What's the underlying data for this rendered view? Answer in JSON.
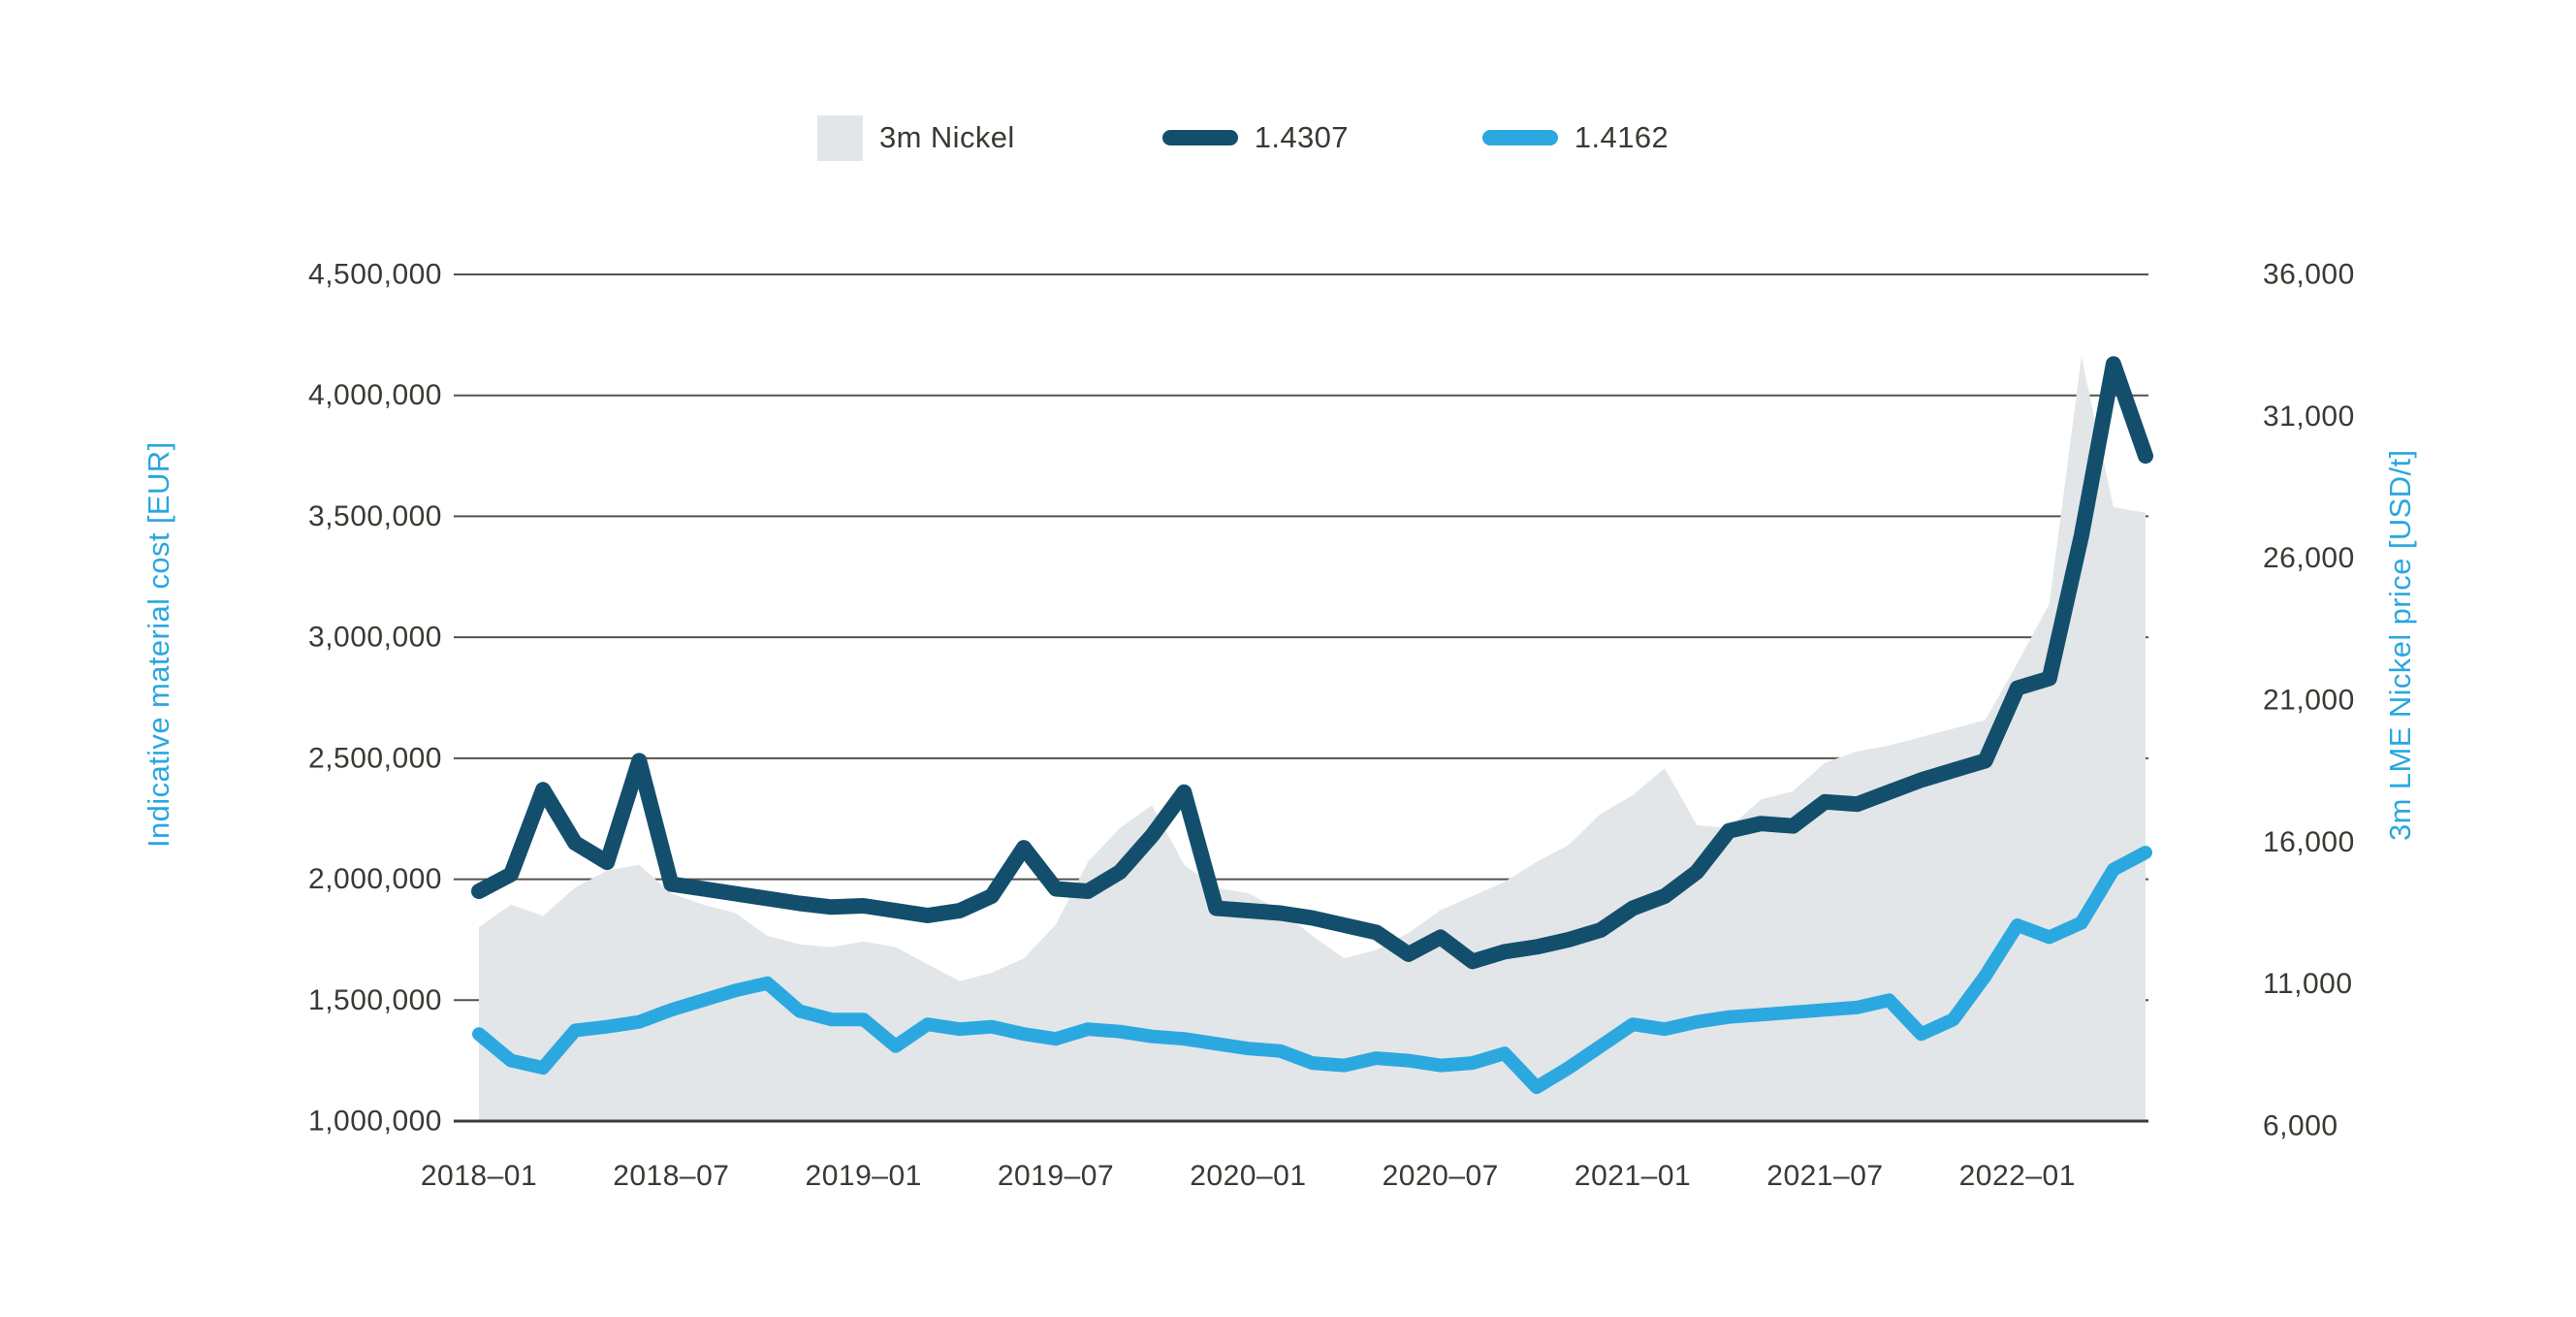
{
  "accent_blue": "#29a7e0",
  "text_color": "#3a3933",
  "chart_data": {
    "type": "combo-area-line",
    "title": "",
    "x_start": "2018-01",
    "x_step_months": 1,
    "points": 53,
    "x_tick_labels": [
      "2018–01",
      "2018–07",
      "2019–01",
      "2019–07",
      "2020–01",
      "2020–07",
      "2021–01",
      "2021–07",
      "2022–01"
    ],
    "left_axis": {
      "label": "Indicative material cost [EUR]",
      "min": 1000000,
      "max": 4500000,
      "tick_labels": [
        "4,500,000",
        "4,000,000",
        "3,500,000",
        "3,000,000",
        "2,500,000",
        "2,000,000",
        "1,500,000",
        "1,000,000"
      ]
    },
    "right_axis": {
      "label": "3m LME Nickel price [USD/t]",
      "min": 6000,
      "max": 36000,
      "tick_labels": [
        "36,000",
        "31,000",
        "26,000",
        "21,000",
        "16,000",
        "11,000",
        "6,000"
      ]
    },
    "grid": true,
    "legend_position": "top-center",
    "series": [
      {
        "name": "3m Nickel",
        "type": "area",
        "axis": "right",
        "color": "#e2e6e9",
        "values": [
          13000,
          13800,
          13400,
          14400,
          15000,
          15200,
          14200,
          13800,
          13500,
          12700,
          12400,
          12300,
          12500,
          12300,
          11700,
          11100,
          11400,
          11900,
          13100,
          15300,
          16500,
          17300,
          15200,
          14400,
          14200,
          13600,
          12700,
          11900,
          12200,
          12800,
          13600,
          14100,
          14600,
          15300,
          15900,
          17000,
          17650,
          18600,
          16600,
          16500,
          17500,
          17800,
          18800,
          19200,
          19400,
          19700,
          20000,
          20300,
          22300,
          24400,
          33100,
          27800,
          27600
        ]
      },
      {
        "name": "1.4307",
        "type": "line",
        "axis": "left",
        "color": "#134f6d",
        "stroke_width": 16,
        "values": [
          1950000,
          2020000,
          2370000,
          2150000,
          2070000,
          2490000,
          1980000,
          1960000,
          1940000,
          1920000,
          1900000,
          1885000,
          1890000,
          1870000,
          1850000,
          1870000,
          1930000,
          2130000,
          1960000,
          1950000,
          2030000,
          2180000,
          2360000,
          1880000,
          1870000,
          1860000,
          1840000,
          1810000,
          1780000,
          1690000,
          1760000,
          1660000,
          1700000,
          1720000,
          1750000,
          1790000,
          1880000,
          1930000,
          2030000,
          2200000,
          2230000,
          2220000,
          2320000,
          2310000,
          2360000,
          2410000,
          2450000,
          2490000,
          2790000,
          2830000,
          3420000,
          4130000,
          3750000
        ]
      },
      {
        "name": "1.4162",
        "type": "line",
        "axis": "left",
        "color": "#2ca8e0",
        "stroke_width": 14,
        "values": [
          1360000,
          1250000,
          1220000,
          1375000,
          1390000,
          1410000,
          1460000,
          1500000,
          1540000,
          1570000,
          1455000,
          1420000,
          1420000,
          1310000,
          1400000,
          1380000,
          1390000,
          1360000,
          1340000,
          1380000,
          1370000,
          1350000,
          1340000,
          1320000,
          1300000,
          1290000,
          1240000,
          1230000,
          1260000,
          1250000,
          1230000,
          1240000,
          1280000,
          1140000,
          1220000,
          1310000,
          1400000,
          1380000,
          1410000,
          1430000,
          1440000,
          1450000,
          1460000,
          1470000,
          1500000,
          1360000,
          1420000,
          1600000,
          1810000,
          1760000,
          1820000,
          2040000,
          2110000
        ]
      }
    ],
    "grid_color": "#54524a",
    "axis_line_color": "#3e3c37"
  }
}
